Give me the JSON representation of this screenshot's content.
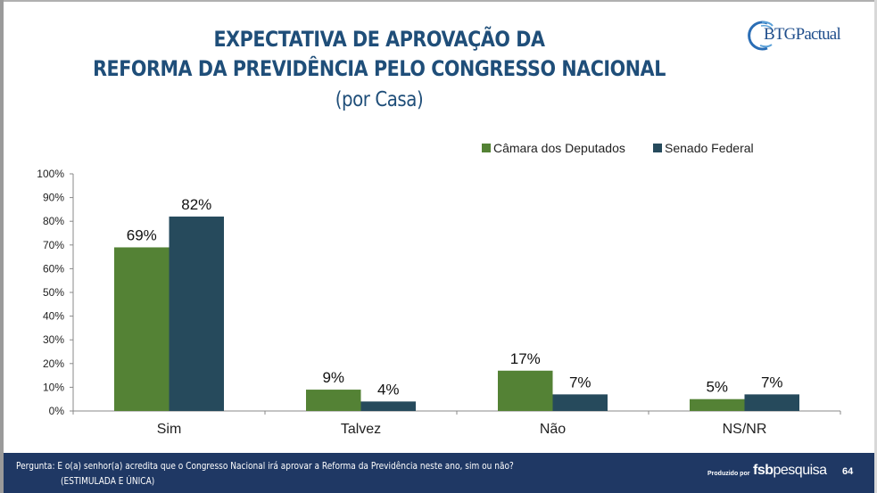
{
  "slide": {
    "title_line1": "EXPECTATIVA DE APROVAÇÃO DA",
    "title_line2": "REFORMA DA PREVIDÊNCIA PELO CONGRESSO NACIONAL",
    "subtitle": "(por Casa)",
    "logo_text": "BTGPactual",
    "footer": {
      "question": "Pergunta: E o(a) senhor(a) acredita que o Congresso Nacional irá aprovar a Reforma da Previdência neste ano, sim ou não?",
      "question_note": "(ESTIMULADA E ÚNICA)",
      "produced_by": "Produzido por",
      "producer_bold": "fsb",
      "producer_rest": "pesquisa",
      "page_number": "64"
    }
  },
  "colors": {
    "camara": "#548235",
    "senado": "#264a5c",
    "title": "#1f4e79",
    "footer_bg": "#1f3864"
  },
  "chart_data": {
    "type": "bar",
    "title": "EXPECTATIVA DE APROVAÇÃO DA REFORMA DA PREVIDÊNCIA PELO CONGRESSO NACIONAL (por Casa)",
    "categories": [
      "Sim",
      "Talvez",
      "Não",
      "NS/NR"
    ],
    "series": [
      {
        "name": "Câmara dos Deputados",
        "values": [
          69,
          9,
          17,
          5
        ],
        "labels": [
          "69%",
          "9%",
          "17%",
          "5%"
        ]
      },
      {
        "name": "Senado Federal",
        "values": [
          82,
          4,
          7,
          7
        ],
        "labels": [
          "82%",
          "4%",
          "7%",
          "7%"
        ]
      }
    ],
    "xlabel": "",
    "ylabel": "",
    "ylim": [
      0,
      100
    ],
    "yticks": [
      "0%",
      "10%",
      "20%",
      "30%",
      "40%",
      "50%",
      "60%",
      "70%",
      "80%",
      "90%",
      "100%"
    ],
    "grid": false,
    "legend": "top-right"
  }
}
